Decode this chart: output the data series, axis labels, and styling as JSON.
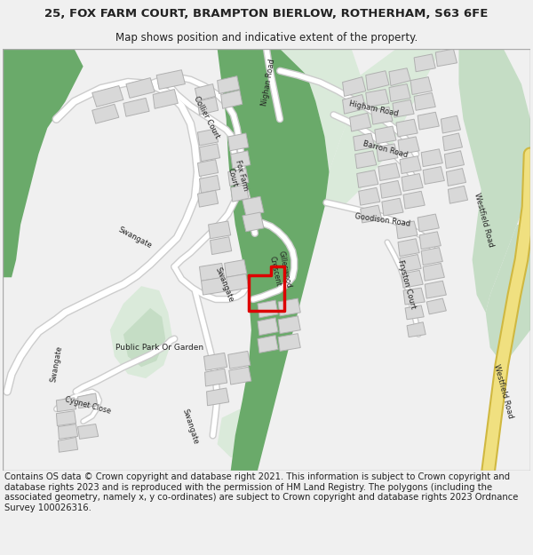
{
  "title_line1": "25, FOX FARM COURT, BRAMPTON BIERLOW, ROTHERHAM, S63 6FE",
  "title_line2": "Map shows position and indicative extent of the property.",
  "footer_text": "Contains OS data © Crown copyright and database right 2021. This information is subject to Crown copyright and database rights 2023 and is reproduced with the permission of HM Land Registry. The polygons (including the associated geometry, namely x, y co-ordinates) are subject to Crown copyright and database rights 2023 Ordnance Survey 100026316.",
  "bg_color": "#f0f0f0",
  "map_bg": "#ffffff",
  "green_dark": "#6aaa6a",
  "green_mid": "#8dc48d",
  "green_light": "#c5ddc5",
  "green_pale": "#daeada",
  "building_color": "#d8d8d8",
  "building_outline": "#b0b0b0",
  "road_yellow": "#f0e080",
  "road_yellow_border": "#d0b840",
  "road_white": "#ffffff",
  "road_grey": "#cccccc",
  "plot_red": "#dd0000",
  "text_color": "#222222",
  "border_color": "#aaaaaa",
  "title_fontsize": 9.5,
  "subtitle_fontsize": 8.5,
  "footer_fontsize": 7.2,
  "label_fontsize": 6.0
}
